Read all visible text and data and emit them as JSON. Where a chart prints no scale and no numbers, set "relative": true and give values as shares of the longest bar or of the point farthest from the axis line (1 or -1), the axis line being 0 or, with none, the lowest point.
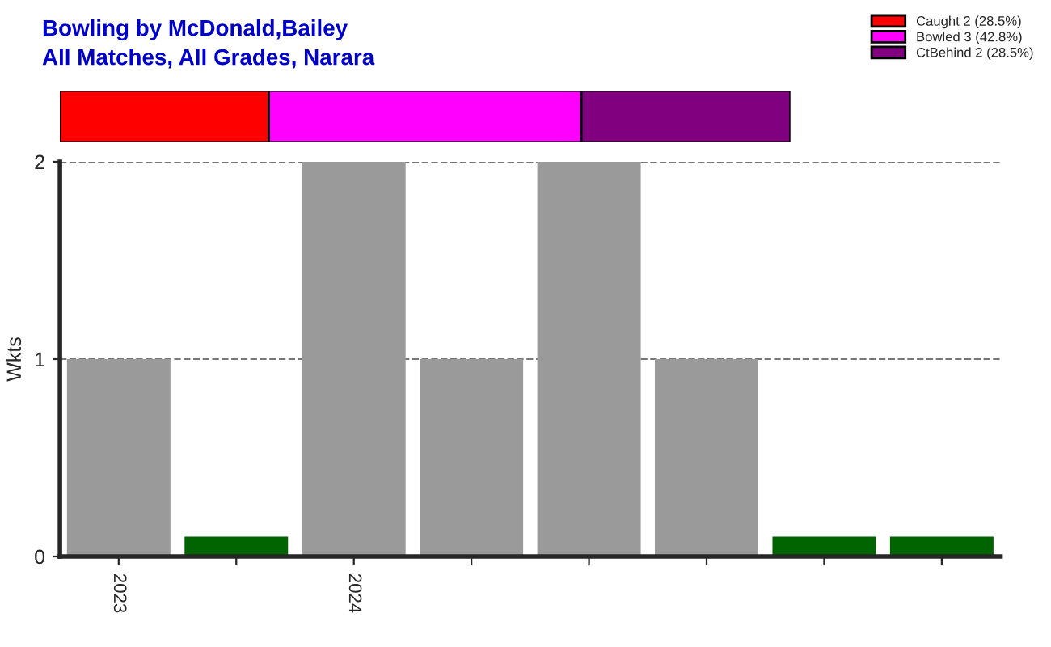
{
  "chart_data": [
    {
      "type": "bar",
      "title": "Bowling by McDonald,Bailey",
      "subtitle": "All Matches, All Grades, Narara",
      "orientation": "horizontal",
      "stacked": true,
      "relative": true,
      "legend": "top right",
      "categories": [
        null
      ],
      "series": [
        {
          "name": "Caught 2 (28.5%)",
          "color": "#ff0000",
          "values": [
            0.286
          ]
        },
        {
          "name": "Bowled 3 (42.8%)",
          "color": "#ff00ff",
          "values": [
            0.428
          ]
        },
        {
          "name": "CtBehind 2 (28.5%)",
          "color": "#800080",
          "values": [
            0.286
          ]
        }
      ]
    },
    {
      "type": "bar",
      "ylabel": "Wkts",
      "categories": [
        "2023",
        null,
        "2024",
        null,
        null,
        null,
        null,
        null
      ],
      "values": [
        1,
        0.1,
        2,
        1,
        2,
        1,
        0.1,
        0.1
      ],
      "colors": [
        "#9a9a9a",
        "#006400",
        "#9a9a9a",
        "#9a9a9a",
        "#9a9a9a",
        "#9a9a9a",
        "#006400",
        "#006400"
      ],
      "ylim": [
        0,
        2
      ],
      "yticks": [
        0,
        1,
        2
      ],
      "grid": "y"
    }
  ]
}
